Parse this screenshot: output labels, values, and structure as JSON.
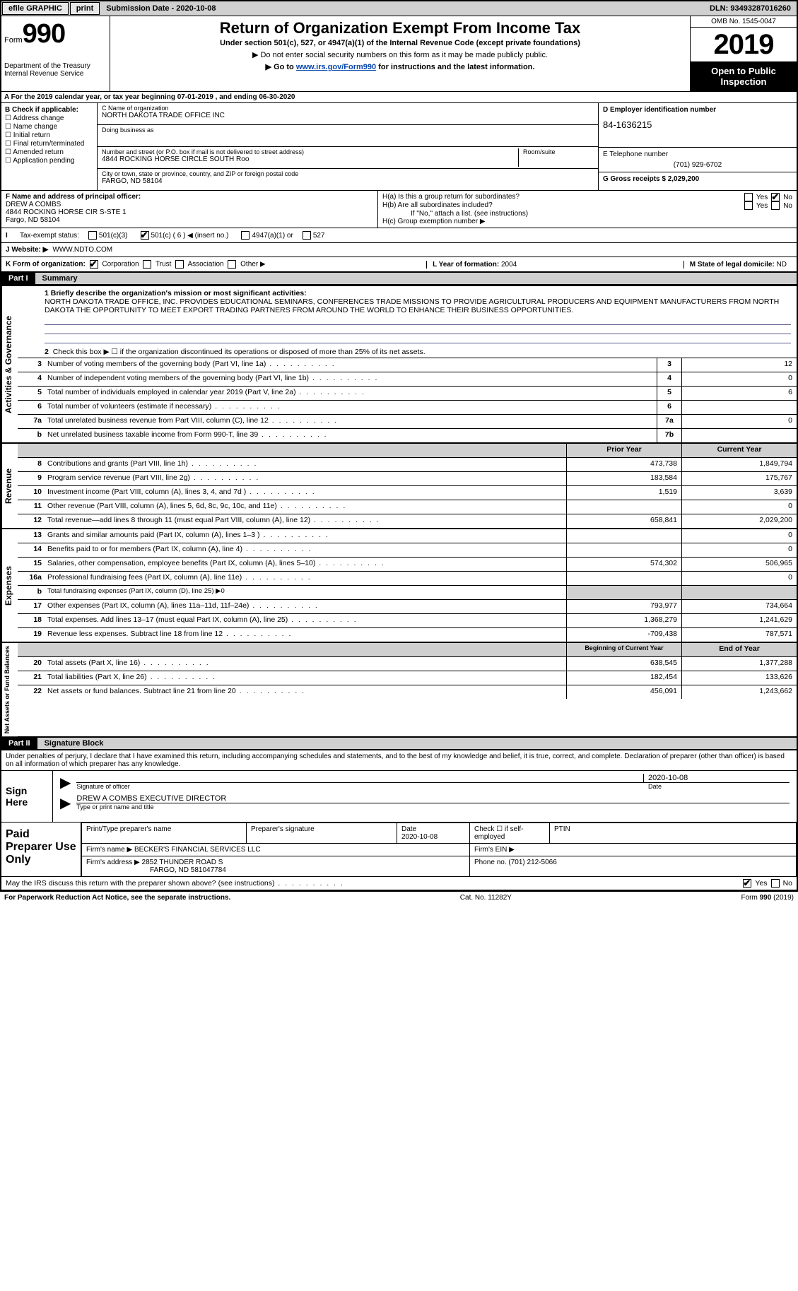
{
  "topbar": {
    "efile": "efile GRAPHIC",
    "print": "print",
    "submission": "Submission Date - 2020-10-08",
    "dln": "DLN: 93493287016260"
  },
  "header": {
    "form_small": "Form",
    "form_big": "990",
    "dept": "Department of the Treasury\nInternal Revenue Service",
    "title": "Return of Organization Exempt From Income Tax",
    "sub1": "Under section 501(c), 527, or 4947(a)(1) of the Internal Revenue Code (except private foundations)",
    "sub2": "▶ Do not enter social security numbers on this form as it may be made publicly public.",
    "sub3a": "▶ Go to ",
    "sub3_link": "www.irs.gov/Form990",
    "sub3b": " for instructions and the latest information.",
    "omb": "OMB No. 1545-0047",
    "year": "2019",
    "open": "Open to Public Inspection"
  },
  "period": "For the 2019 calendar year, or tax year beginning 07-01-2019   , and ending 06-30-2020",
  "colB": {
    "hdr": "B Check if applicable:",
    "items": [
      "Address change",
      "Name change",
      "Initial return",
      "Final return/terminated",
      "Amended return",
      "Application pending"
    ]
  },
  "colC": {
    "name_lbl": "C Name of organization",
    "name": "NORTH DAKOTA TRADE OFFICE INC",
    "dba_lbl": "Doing business as",
    "dba": "",
    "addr_lbl": "Number and street (or P.O. box if mail is not delivered to street address)",
    "addr": "4844 ROCKING HORSE CIRCLE SOUTH Roo",
    "room_lbl": "Room/suite",
    "city_lbl": "City or town, state or province, country, and ZIP or foreign postal code",
    "city": "FARGO, ND  58104"
  },
  "colD": {
    "ein_lbl": "D Employer identification number",
    "ein": "84-1636215",
    "tel_lbl": "E Telephone number",
    "tel": "(701) 929-6702",
    "gross_lbl": "G Gross receipts $",
    "gross": "2,029,200"
  },
  "f": {
    "lbl": "F  Name and address of principal officer:",
    "name": "DREW A COMBS",
    "addr": "4844 ROCKING HORSE CIR S-STE 1",
    "city": "Fargo, ND  58104"
  },
  "h": {
    "a": "H(a)  Is this a group return for subordinates?",
    "b": "H(b)  Are all subordinates included?",
    "b_note": "If \"No,\" attach a list. (see instructions)",
    "c": "H(c)  Group exemption number ▶"
  },
  "i": {
    "lbl": "Tax-exempt status:",
    "opts": [
      "501(c)(3)",
      "501(c) ( 6 ) ◀ (insert no.)",
      "4947(a)(1) or",
      "527"
    ]
  },
  "j": {
    "lbl": "J   Website: ▶",
    "val": "WWW.NDTO.COM"
  },
  "k": {
    "lbl": "K Form of organization:",
    "opts": [
      "Corporation",
      "Trust",
      "Association",
      "Other ▶"
    ]
  },
  "l": {
    "lbl": "L Year of formation:",
    "val": "2004"
  },
  "m": {
    "lbl": "M State of legal domicile:",
    "val": "ND"
  },
  "part1": {
    "num": "Part I",
    "title": "Summary"
  },
  "summary": {
    "line1_lbl": "1   Briefly describe the organization's mission or most significant activities:",
    "line1_txt": "NORTH DAKOTA TRADE OFFICE, INC. PROVIDES EDUCATIONAL SEMINARS, CONFERENCES TRADE MISSIONS TO PROVIDE AGRICULTURAL PRODUCERS AND EQUIPMENT MANUFACTURERS FROM NORTH DAKOTA THE OPPORTUNITY TO MEET EXPORT TRADING PARTNERS FROM AROUND THE WORLD TO ENHANCE THEIR BUSINESS OPPORTUNITIES.",
    "line2": "Check this box ▶ ☐  if the organization discontinued its operations or disposed of more than 25% of its net assets."
  },
  "gov_lines": [
    {
      "n": "3",
      "d": "Number of voting members of the governing body (Part VI, line 1a)",
      "box": "3",
      "v": "12"
    },
    {
      "n": "4",
      "d": "Number of independent voting members of the governing body (Part VI, line 1b)",
      "box": "4",
      "v": "0"
    },
    {
      "n": "5",
      "d": "Total number of individuals employed in calendar year 2019 (Part V, line 2a)",
      "box": "5",
      "v": "6"
    },
    {
      "n": "6",
      "d": "Total number of volunteers (estimate if necessary)",
      "box": "6",
      "v": ""
    },
    {
      "n": "7a",
      "d": "Total unrelated business revenue from Part VIII, column (C), line 12",
      "box": "7a",
      "v": "0"
    },
    {
      "n": "b",
      "d": "Net unrelated business taxable income from Form 990-T, line 39",
      "box": "7b",
      "v": ""
    }
  ],
  "rev_hdr": {
    "py": "Prior Year",
    "cy": "Current Year"
  },
  "rev_lines": [
    {
      "n": "8",
      "d": "Contributions and grants (Part VIII, line 1h)",
      "py": "473,738",
      "cy": "1,849,794"
    },
    {
      "n": "9",
      "d": "Program service revenue (Part VIII, line 2g)",
      "py": "183,584",
      "cy": "175,767"
    },
    {
      "n": "10",
      "d": "Investment income (Part VIII, column (A), lines 3, 4, and 7d )",
      "py": "1,519",
      "cy": "3,639"
    },
    {
      "n": "11",
      "d": "Other revenue (Part VIII, column (A), lines 5, 6d, 8c, 9c, 10c, and 11e)",
      "py": "",
      "cy": "0"
    },
    {
      "n": "12",
      "d": "Total revenue—add lines 8 through 11 (must equal Part VIII, column (A), line 12)",
      "py": "658,841",
      "cy": "2,029,200"
    }
  ],
  "exp_lines": [
    {
      "n": "13",
      "d": "Grants and similar amounts paid (Part IX, column (A), lines 1–3 )",
      "py": "",
      "cy": "0"
    },
    {
      "n": "14",
      "d": "Benefits paid to or for members (Part IX, column (A), line 4)",
      "py": "",
      "cy": "0"
    },
    {
      "n": "15",
      "d": "Salaries, other compensation, employee benefits (Part IX, column (A), lines 5–10)",
      "py": "574,302",
      "cy": "506,965"
    },
    {
      "n": "16a",
      "d": "Professional fundraising fees (Part IX, column (A), line 11e)",
      "py": "",
      "cy": "0"
    },
    {
      "n": "b",
      "d": "Total fundraising expenses (Part IX, column (D), line 25) ▶0",
      "py": "",
      "cy": "",
      "nobox": true
    },
    {
      "n": "17",
      "d": "Other expenses (Part IX, column (A), lines 11a–11d, 11f–24e)",
      "py": "793,977",
      "cy": "734,664"
    },
    {
      "n": "18",
      "d": "Total expenses. Add lines 13–17 (must equal Part IX, column (A), line 25)",
      "py": "1,368,279",
      "cy": "1,241,629"
    },
    {
      "n": "19",
      "d": "Revenue less expenses. Subtract line 18 from line 12",
      "py": "-709,438",
      "cy": "787,571"
    }
  ],
  "bal_hdr": {
    "py": "Beginning of Current Year",
    "cy": "End of Year"
  },
  "bal_lines": [
    {
      "n": "20",
      "d": "Total assets (Part X, line 16)",
      "py": "638,545",
      "cy": "1,377,288"
    },
    {
      "n": "21",
      "d": "Total liabilities (Part X, line 26)",
      "py": "182,454",
      "cy": "133,626"
    },
    {
      "n": "22",
      "d": "Net assets or fund balances. Subtract line 21 from line 20",
      "py": "456,091",
      "cy": "1,243,662"
    }
  ],
  "part2": {
    "num": "Part II",
    "title": "Signature Block"
  },
  "sig": {
    "perjury": "Under penalties of perjury, I declare that I have examined this return, including accompanying schedules and statements, and to the best of my knowledge and belief, it is true, correct, and complete. Declaration of preparer (other than officer) is based on all information of which preparer has any knowledge.",
    "sign_here": "Sign Here",
    "officer_sig": "Signature of officer",
    "date": "2020-10-08",
    "date_lbl": "Date",
    "officer_name": "DREW A COMBS  EXECUTIVE DIRECTOR",
    "officer_name_lbl": "Type or print name and title"
  },
  "paid": {
    "lbl": "Paid Preparer Use Only",
    "r1": [
      "Print/Type preparer's name",
      "Preparer's signature",
      "Date\n2020-10-08",
      "Check ☐ if self-employed",
      "PTIN"
    ],
    "firm_name_lbl": "Firm's name   ▶",
    "firm_name": "BECKER'S FINANCIAL SERVICES LLC",
    "firm_ein_lbl": "Firm's EIN ▶",
    "firm_addr_lbl": "Firm's address ▶",
    "firm_addr": "2852 THUNDER ROAD S",
    "firm_addr2": "FARGO, ND  581047784",
    "phone_lbl": "Phone no.",
    "phone": "(701) 212-5066"
  },
  "discuss": "May the IRS discuss this return with the preparer shown above? (see instructions)",
  "footer": {
    "left": "For Paperwork Reduction Act Notice, see the separate instructions.",
    "mid": "Cat. No. 11282Y",
    "right": "Form 990 (2019)"
  },
  "side": {
    "gov": "Activities & Governance",
    "rev": "Revenue",
    "exp": "Expenses",
    "bal": "Net Assets or Fund Balances"
  }
}
